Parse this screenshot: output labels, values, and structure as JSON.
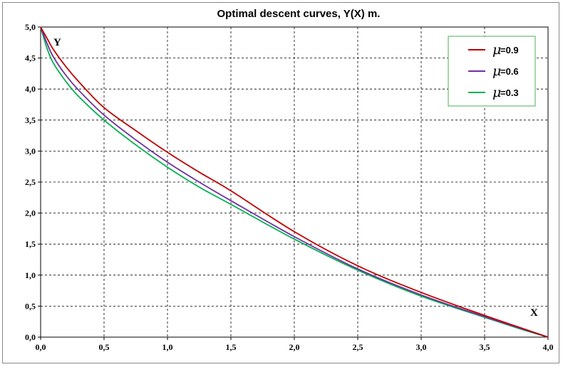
{
  "chart_data": {
    "type": "line",
    "title": "Optimal descent curves, Y(X) m.",
    "xlabel": "X",
    "ylabel": "Y",
    "xlim": [
      0,
      4.0
    ],
    "ylim": [
      0,
      5.0
    ],
    "x_ticks": [
      "0,0",
      "0,5",
      "1,0",
      "1,5",
      "2,0",
      "2,5",
      "3,0",
      "3,5",
      "4,0"
    ],
    "y_ticks": [
      "0,0",
      "0,5",
      "1,0",
      "1,5",
      "2,0",
      "2,5",
      "3,0",
      "3,5",
      "4,0",
      "4,5",
      "5,0"
    ],
    "grid": true,
    "legend_position": "top-right",
    "series": [
      {
        "name": "μ=0.9",
        "mu_symbol": "μ",
        "label_suffix": "=0.9",
        "color": "#c00000",
        "x": [
          0.0,
          0.05,
          0.1,
          0.2,
          0.3,
          0.5,
          0.75,
          1.0,
          1.25,
          1.5,
          2.0,
          2.5,
          3.0,
          3.5,
          3.8,
          4.0
        ],
        "y": [
          5.0,
          4.82,
          4.64,
          4.36,
          4.12,
          3.7,
          3.33,
          2.98,
          2.66,
          2.36,
          1.7,
          1.15,
          0.72,
          0.35,
          0.14,
          0.0
        ]
      },
      {
        "name": "μ=0.6",
        "mu_symbol": "μ",
        "label_suffix": "=0.6",
        "color": "#7030a0",
        "x": [
          0.0,
          0.05,
          0.1,
          0.2,
          0.3,
          0.5,
          0.75,
          1.0,
          1.25,
          1.5,
          2.0,
          2.5,
          3.0,
          3.5,
          3.8,
          4.0
        ],
        "y": [
          5.0,
          4.74,
          4.52,
          4.22,
          3.98,
          3.58,
          3.18,
          2.82,
          2.5,
          2.2,
          1.62,
          1.1,
          0.68,
          0.33,
          0.13,
          0.0
        ]
      },
      {
        "name": "μ=0.3",
        "mu_symbol": "μ",
        "label_suffix": "=0.3",
        "color": "#00b050",
        "x": [
          0.0,
          0.05,
          0.1,
          0.2,
          0.3,
          0.5,
          0.75,
          1.0,
          1.25,
          1.5,
          2.0,
          2.5,
          3.0,
          3.5,
          3.8,
          4.0
        ],
        "y": [
          5.0,
          4.66,
          4.42,
          4.12,
          3.88,
          3.5,
          3.1,
          2.74,
          2.42,
          2.14,
          1.58,
          1.08,
          0.66,
          0.32,
          0.12,
          0.0
        ]
      }
    ]
  }
}
